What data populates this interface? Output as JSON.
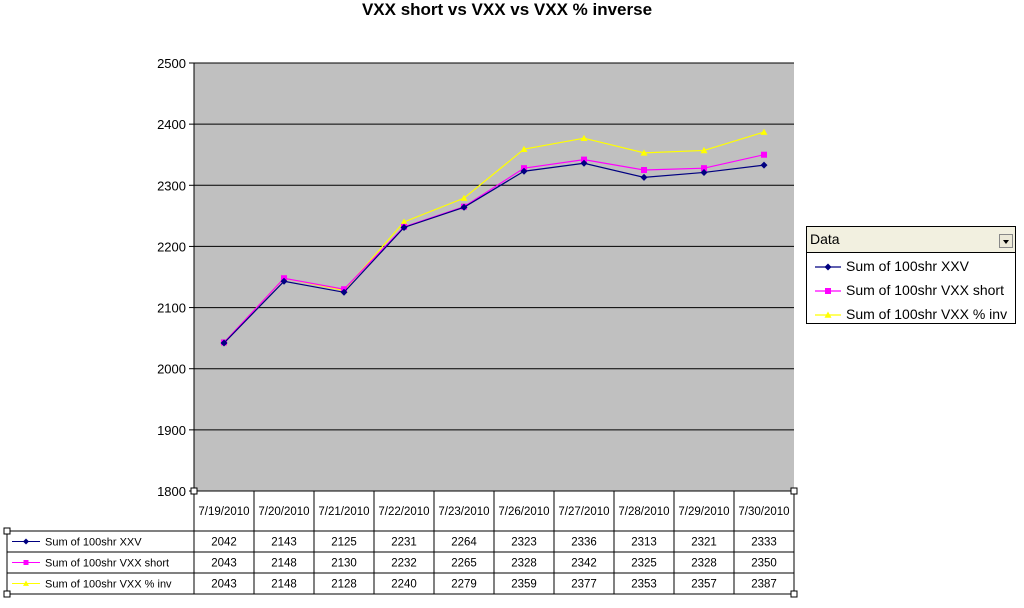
{
  "chart_data": {
    "type": "line",
    "title": "VXX short vs VXX vs VXX % inverse",
    "categories": [
      "7/19/2010",
      "7/20/2010",
      "7/21/2010",
      "7/22/2010",
      "7/23/2010",
      "7/26/2010",
      "7/27/2010",
      "7/28/2010",
      "7/29/2010",
      "7/30/2010"
    ],
    "series": [
      {
        "name": "Sum of 100shr XXV",
        "color": "#000080",
        "marker": "diamond",
        "values": [
          2042,
          2143,
          2125,
          2231,
          2264,
          2323,
          2336,
          2313,
          2321,
          2333
        ]
      },
      {
        "name": "Sum of 100shr VXX short",
        "color": "#ff00ff",
        "marker": "square",
        "values": [
          2043,
          2148,
          2130,
          2232,
          2265,
          2328,
          2342,
          2325,
          2328,
          2350
        ]
      },
      {
        "name": "Sum of 100shr VXX % inv",
        "color": "#ffff00",
        "marker": "triangle",
        "values": [
          2043,
          2148,
          2128,
          2240,
          2279,
          2359,
          2377,
          2353,
          2357,
          2387
        ]
      }
    ],
    "ylim": [
      1800,
      2500
    ],
    "yticks": [
      1800,
      1900,
      2000,
      2100,
      2200,
      2300,
      2400,
      2500
    ],
    "grid": true,
    "plot_background": "#c0c0c0",
    "data_table": true,
    "legend": {
      "title": "Data",
      "placement": "right"
    }
  }
}
